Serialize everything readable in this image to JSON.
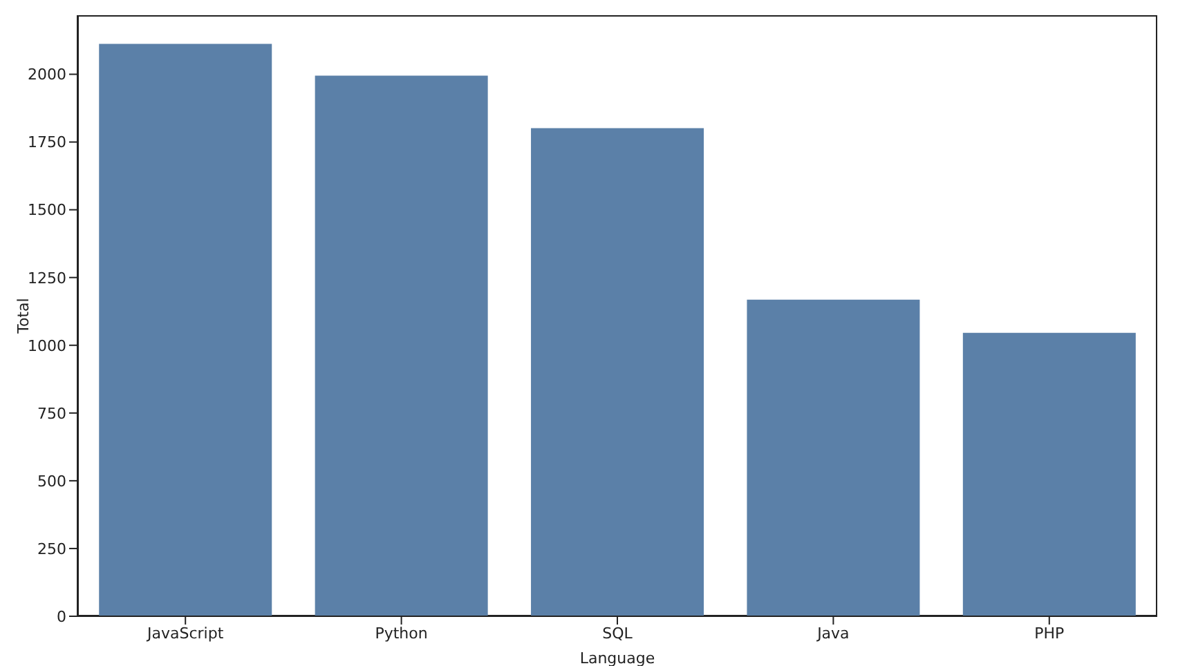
{
  "chart_data": {
    "type": "bar",
    "xlabel": "Language",
    "ylabel": "Total",
    "categories": [
      "JavaScript",
      "Python",
      "SQL",
      "Java",
      "PHP"
    ],
    "values": [
      2112,
      1995,
      1801,
      1168,
      1046
    ],
    "color": "#5b80a8",
    "ylim": [
      0,
      2218
    ],
    "yticks": [
      0,
      250,
      500,
      750,
      1000,
      1250,
      1500,
      1750,
      2000
    ],
    "grid": false,
    "legend": false
  }
}
